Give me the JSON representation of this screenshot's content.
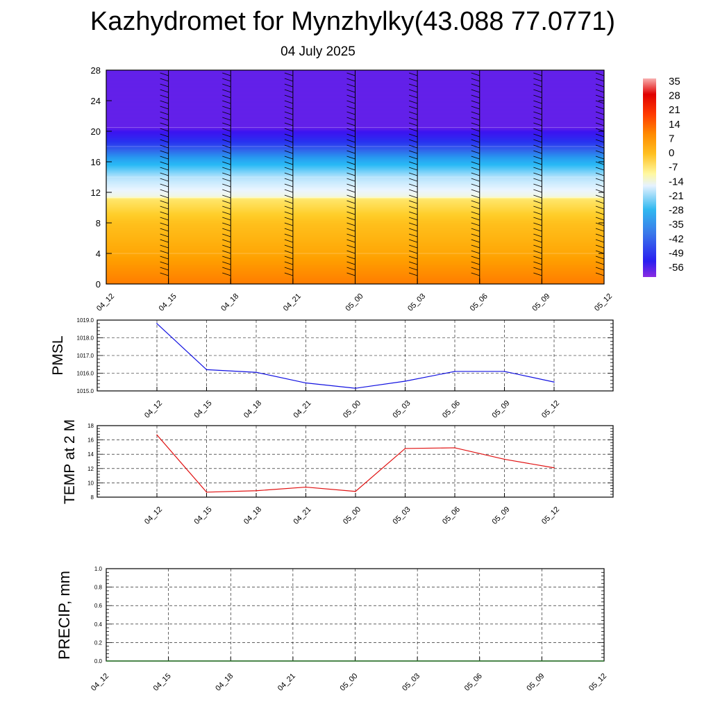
{
  "title": "Kazhydromet for Mynzhylky(43.088 77.0771)",
  "date": "04 July 2025",
  "colors": {
    "pmsl_line": "#1010e0",
    "temp_line": "#e01010",
    "precip_line": "#207020"
  },
  "chart_data": [
    {
      "id": "cross_section",
      "type": "heatmap",
      "title": "",
      "xlabel": "",
      "ylabel": "",
      "x_ticks": [
        "04_12",
        "04_15",
        "04_18",
        "04_21",
        "05_00",
        "05_03",
        "05_06",
        "05_09",
        "05_12"
      ],
      "ylim": [
        0,
        28
      ],
      "y_ticks": [
        0,
        4,
        8,
        12,
        16,
        20,
        24,
        28
      ],
      "colorbar_labels": [
        "35",
        "28",
        "21",
        "14",
        "7",
        "0",
        "-7",
        "-14",
        "-21",
        "-28",
        "-35",
        "-42",
        "-49",
        "-56"
      ],
      "layers": [
        {
          "range": [
            20.5,
            28
          ],
          "temp": -57
        },
        {
          "range": [
            18,
            20.5
          ],
          "temp": -52
        },
        {
          "range": [
            14,
            18
          ],
          "temp": -32
        },
        {
          "range": [
            11.3,
            14
          ],
          "temp": -16
        },
        {
          "range": [
            4,
            11.3
          ],
          "temp": 2
        },
        {
          "range": [
            0,
            4
          ],
          "temp": 12
        }
      ]
    },
    {
      "id": "pmsl",
      "type": "line",
      "ylabel": "PMSL",
      "categories": [
        "04_12",
        "04_15",
        "04_18",
        "04_21",
        "05_00",
        "05_03",
        "05_06",
        "05_09",
        "05_12"
      ],
      "series": [
        {
          "values": [
            1018.8,
            1016.2,
            1016.05,
            1015.45,
            1015.15,
            1015.55,
            1016.1,
            1016.1,
            1015.5
          ]
        }
      ],
      "ylim": [
        1015.0,
        1019.0
      ],
      "y_ticks": [
        "1015.0",
        "1016.0",
        "1017.0",
        "1018.0",
        "1019.0"
      ]
    },
    {
      "id": "temp2m",
      "type": "line",
      "ylabel": "TEMP at 2 M",
      "categories": [
        "04_12",
        "04_15",
        "04_18",
        "04_21",
        "05_00",
        "05_03",
        "05_06",
        "05_09",
        "05_12"
      ],
      "series": [
        {
          "values": [
            16.7,
            8.7,
            8.9,
            9.4,
            8.8,
            14.8,
            14.9,
            13.3,
            12.1
          ]
        }
      ],
      "ylim": [
        8,
        18
      ],
      "y_ticks": [
        "8",
        "10",
        "12",
        "14",
        "16",
        "18"
      ]
    },
    {
      "id": "precip",
      "type": "line",
      "ylabel": "PRECIP, mm",
      "categories": [
        "04_12",
        "04_15",
        "04_18",
        "04_21",
        "05_00",
        "05_03",
        "05_06",
        "05_09",
        "05_12"
      ],
      "series": [
        {
          "values": [
            0,
            0,
            0,
            0,
            0,
            0,
            0,
            0,
            0
          ]
        }
      ],
      "ylim": [
        0,
        1.0
      ],
      "y_ticks": [
        "0.0",
        "0.2",
        "0.4",
        "0.6",
        "0.8",
        "1.0"
      ]
    }
  ]
}
